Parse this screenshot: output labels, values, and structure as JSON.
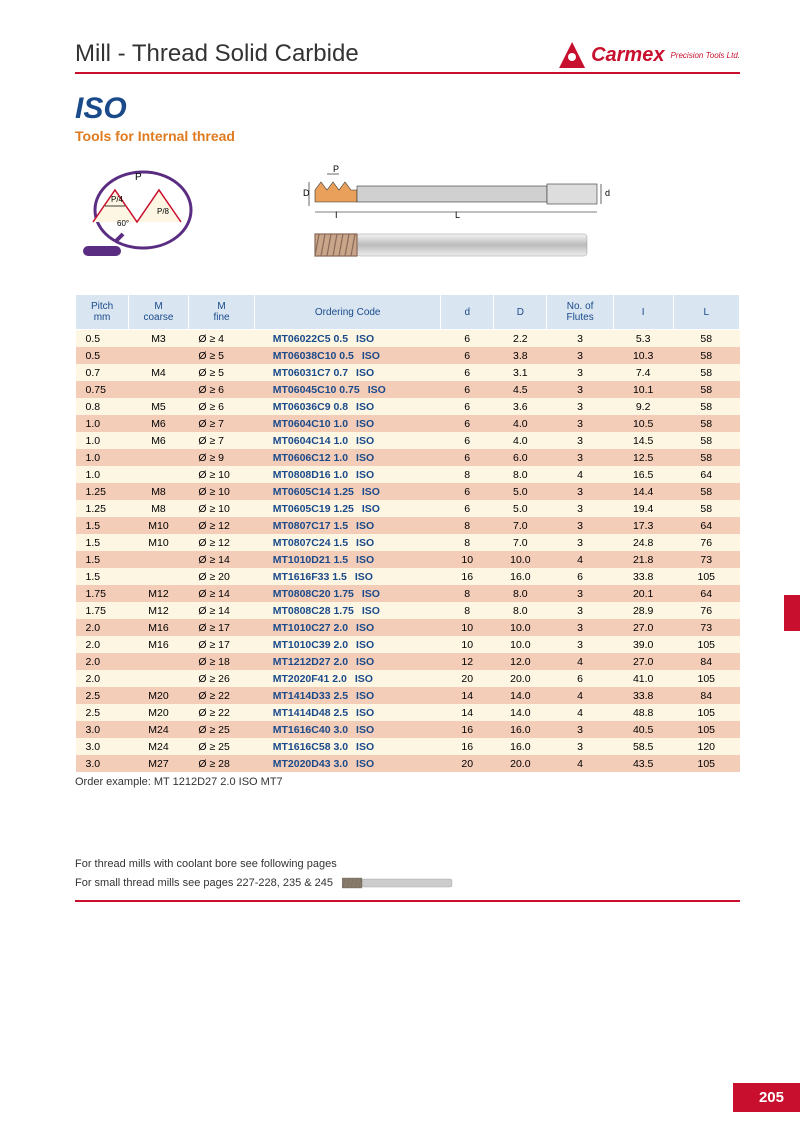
{
  "header": {
    "title": "Mill - Thread Solid Carbide",
    "brand_name": "Carmex",
    "brand_suffix": "Precision Tools Ltd."
  },
  "section": {
    "iso": "ISO",
    "subtitle": "Tools for Internal thread"
  },
  "columns": [
    "Pitch\nmm",
    "M\ncoarse",
    "M\nfine",
    "Ordering Code",
    "d",
    "D",
    "No. of\nFlutes",
    "I",
    "L"
  ],
  "rows": [
    [
      "0.5",
      "M3",
      "Ø ≥   4",
      "MT06022C5 0.5",
      "ISO",
      "6",
      "2.2",
      "3",
      "5.3",
      "58"
    ],
    [
      "0.5",
      "",
      "Ø ≥   5",
      "MT06038C10 0.5",
      "ISO",
      "6",
      "3.8",
      "3",
      "10.3",
      "58"
    ],
    [
      "0.7",
      "M4",
      "Ø ≥   5",
      "MT06031C7 0.7",
      "ISO",
      "6",
      "3.1",
      "3",
      "7.4",
      "58"
    ],
    [
      "0.75",
      "",
      "Ø ≥   6",
      "MT06045C10 0.75",
      "ISO",
      "6",
      "4.5",
      "3",
      "10.1",
      "58"
    ],
    [
      "0.8",
      "M5",
      "Ø ≥   6",
      "MT06036C9 0.8",
      "ISO",
      "6",
      "3.6",
      "3",
      "9.2",
      "58"
    ],
    [
      "1.0",
      "M6",
      "Ø ≥   7",
      "MT0604C10 1.0",
      "ISO",
      "6",
      "4.0",
      "3",
      "10.5",
      "58"
    ],
    [
      "1.0",
      "M6",
      "Ø ≥   7",
      "MT0604C14 1.0",
      "ISO",
      "6",
      "4.0",
      "3",
      "14.5",
      "58"
    ],
    [
      "1.0",
      "",
      "Ø ≥   9",
      "MT0606C12 1.0",
      "ISO",
      "6",
      "6.0",
      "3",
      "12.5",
      "58"
    ],
    [
      "1.0",
      "",
      "Ø ≥ 10",
      "MT0808D16 1.0",
      "ISO",
      "8",
      "8.0",
      "4",
      "16.5",
      "64"
    ],
    [
      "1.25",
      "M8",
      "Ø ≥ 10",
      "MT0605C14 1.25",
      "ISO",
      "6",
      "5.0",
      "3",
      "14.4",
      "58"
    ],
    [
      "1.25",
      "M8",
      "Ø ≥ 10",
      "MT0605C19 1.25",
      "ISO",
      "6",
      "5.0",
      "3",
      "19.4",
      "58"
    ],
    [
      "1.5",
      "M10",
      "Ø ≥ 12",
      "MT0807C17 1.5",
      "ISO",
      "8",
      "7.0",
      "3",
      "17.3",
      "64"
    ],
    [
      "1.5",
      "M10",
      "Ø ≥ 12",
      "MT0807C24 1.5",
      "ISO",
      "8",
      "7.0",
      "3",
      "24.8",
      "76"
    ],
    [
      "1.5",
      "",
      "Ø ≥ 14",
      "MT1010D21 1.5",
      "ISO",
      "10",
      "10.0",
      "4",
      "21.8",
      "73"
    ],
    [
      "1.5",
      "",
      "Ø ≥ 20",
      "MT1616F33 1.5",
      "ISO",
      "16",
      "16.0",
      "6",
      "33.8",
      "105"
    ],
    [
      "1.75",
      "M12",
      "Ø ≥ 14",
      "MT0808C20 1.75",
      "ISO",
      "8",
      "8.0",
      "3",
      "20.1",
      "64"
    ],
    [
      "1.75",
      "M12",
      "Ø ≥ 14",
      "MT0808C28 1.75",
      "ISO",
      "8",
      "8.0",
      "3",
      "28.9",
      "76"
    ],
    [
      "2.0",
      "M16",
      "Ø ≥ 17",
      "MT1010C27 2.0",
      "ISO",
      "10",
      "10.0",
      "3",
      "27.0",
      "73"
    ],
    [
      "2.0",
      "M16",
      "Ø ≥ 17",
      "MT1010C39 2.0",
      "ISO",
      "10",
      "10.0",
      "3",
      "39.0",
      "105"
    ],
    [
      "2.0",
      "",
      "Ø ≥ 18",
      "MT1212D27 2.0",
      "ISO",
      "12",
      "12.0",
      "4",
      "27.0",
      "84"
    ],
    [
      "2.0",
      "",
      "Ø ≥ 26",
      "MT2020F41 2.0",
      "ISO",
      "20",
      "20.0",
      "6",
      "41.0",
      "105"
    ],
    [
      "2.5",
      "M20",
      "Ø ≥ 22",
      "MT1414D33 2.5",
      "ISO",
      "14",
      "14.0",
      "4",
      "33.8",
      "84"
    ],
    [
      "2.5",
      "M20",
      "Ø ≥ 22",
      "MT1414D48 2.5",
      "ISO",
      "14",
      "14.0",
      "4",
      "48.8",
      "105"
    ],
    [
      "3.0",
      "M24",
      "Ø ≥ 25",
      "MT1616C40 3.0",
      "ISO",
      "16",
      "16.0",
      "3",
      "40.5",
      "105"
    ],
    [
      "3.0",
      "M24",
      "Ø ≥ 25",
      "MT1616C58 3.0",
      "ISO",
      "16",
      "16.0",
      "3",
      "58.5",
      "120"
    ],
    [
      "3.0",
      "M27",
      "Ø ≥ 28",
      "MT2020D43 3.0",
      "ISO",
      "20",
      "20.0",
      "4",
      "43.5",
      "105"
    ]
  ],
  "col_widths": [
    "8%",
    "9%",
    "10%",
    "28%",
    "8%",
    "8%",
    "10%",
    "9%",
    "10%"
  ],
  "order_example": "Order example: MT 1212D27 2.0 ISO MT7",
  "footer": {
    "note1": "For thread mills with coolant bore see following pages",
    "note2": "For small thread mills see pages 227-228, 235 & 245"
  },
  "page_number": "205",
  "colors": {
    "red": "#c8102e",
    "blue": "#1a4a8a",
    "orange": "#e07a1f",
    "header_bg": "#d9e6f2",
    "cream": "#fdf6e3",
    "peach": "#f4cdb8"
  }
}
